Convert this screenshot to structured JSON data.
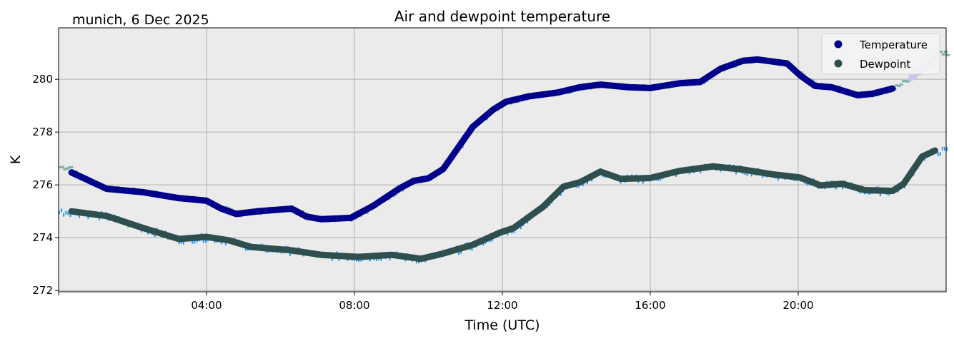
{
  "chart_data": {
    "type": "line",
    "title": "Air and dewpoint temperature",
    "subtitle": "munich, 6 Dec 2025",
    "xlabel": "Time (UTC)",
    "ylabel": "K",
    "xlim": [
      0,
      24
    ],
    "ylim": [
      271.95,
      281.95
    ],
    "xticks": [
      {
        "v": 4,
        "label": "04:00"
      },
      {
        "v": 8,
        "label": "08:00"
      },
      {
        "v": 12,
        "label": "12:00"
      },
      {
        "v": 16,
        "label": "16:00"
      },
      {
        "v": 20,
        "label": "20:00"
      }
    ],
    "yticks": [
      {
        "v": 272,
        "label": "272"
      },
      {
        "v": 274,
        "label": "274"
      },
      {
        "v": 276,
        "label": "276"
      },
      {
        "v": 278,
        "label": "278"
      },
      {
        "v": 280,
        "label": "280"
      }
    ],
    "grid": true,
    "legend_position": "top-right",
    "colors": {
      "temperature": "#00008b",
      "dewpoint": "#2f4f4f",
      "temperature_raw": "#7fb0ad",
      "dewpoint_raw": "#2196f3",
      "temperature_late": "#c8c8ee",
      "background": "#ebebeb"
    },
    "series": [
      {
        "name": "Temperature",
        "x": [
          0.35,
          1.3,
          2.3,
          3.25,
          4.0,
          4.4,
          4.8,
          5.4,
          6.3,
          6.7,
          7.1,
          7.9,
          8.5,
          9.2,
          9.6,
          10.0,
          10.4,
          10.8,
          11.2,
          11.75,
          12.1,
          12.7,
          13.5,
          14.1,
          14.65,
          15.4,
          16.0,
          16.8,
          17.35,
          17.9,
          18.5,
          18.9,
          19.7,
          20.05,
          20.45,
          20.9,
          21.6,
          22.0,
          22.55,
          23.05,
          23.7
        ],
        "y": [
          276.47,
          275.85,
          275.72,
          275.5,
          275.4,
          275.1,
          274.9,
          275.0,
          275.1,
          274.8,
          274.7,
          274.75,
          275.2,
          275.85,
          276.15,
          276.25,
          276.6,
          277.4,
          278.2,
          278.85,
          279.15,
          279.35,
          279.5,
          279.7,
          279.8,
          279.7,
          279.67,
          279.85,
          279.9,
          280.4,
          280.7,
          280.75,
          280.6,
          280.15,
          279.75,
          279.7,
          279.4,
          279.45,
          279.65,
          280.05,
          280.8
        ]
      },
      {
        "name": "Dewpoint",
        "x": [
          0.35,
          1.3,
          2.3,
          3.25,
          4.0,
          4.6,
          5.2,
          6.3,
          7.1,
          8.1,
          9.0,
          9.8,
          10.4,
          11.2,
          11.95,
          12.3,
          13.1,
          13.65,
          14.1,
          14.65,
          15.2,
          16.0,
          16.8,
          17.7,
          18.5,
          19.3,
          20.05,
          20.6,
          21.2,
          21.8,
          22.55,
          22.85,
          23.35,
          23.7
        ],
        "y": [
          275.0,
          274.82,
          274.36,
          273.95,
          274.03,
          273.9,
          273.65,
          273.52,
          273.35,
          273.27,
          273.35,
          273.2,
          273.4,
          273.73,
          274.2,
          274.36,
          275.17,
          275.93,
          276.1,
          276.5,
          276.23,
          276.26,
          276.53,
          276.7,
          276.58,
          276.4,
          276.28,
          275.98,
          276.04,
          275.8,
          275.77,
          276.04,
          277.07,
          277.3
        ]
      }
    ],
    "temperature_fade_after_hour": 23.0
  }
}
